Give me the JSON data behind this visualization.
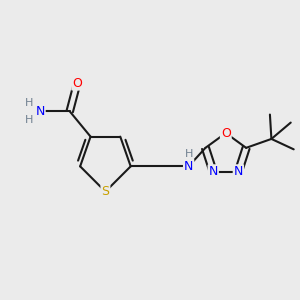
{
  "bg_color": "#ebebeb",
  "atom_colors": {
    "S": "#c8a000",
    "O": "#ff0000",
    "N": "#0000ff",
    "H": "#708090",
    "C": "#1a1a1a"
  },
  "bond_color": "#1a1a1a",
  "line_width": 1.5
}
